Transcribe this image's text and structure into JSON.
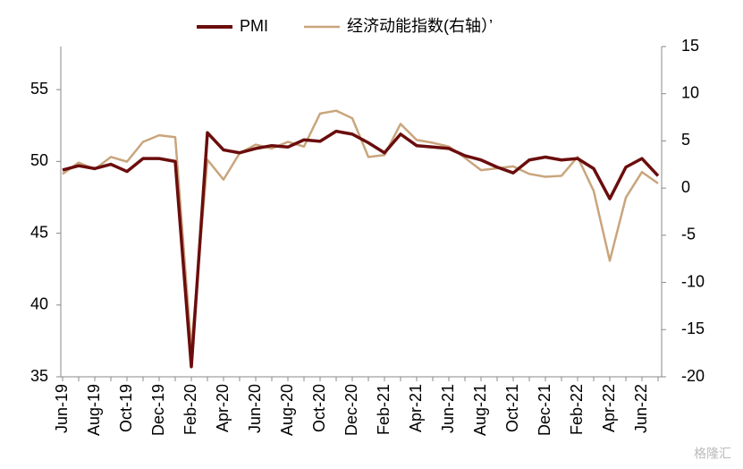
{
  "chart_data": {
    "type": "line",
    "categories": [
      "Jun-19",
      null,
      "Aug-19",
      null,
      "Oct-19",
      null,
      "Dec-19",
      null,
      "Feb-20",
      null,
      "Apr-20",
      null,
      "Jun-20",
      null,
      "Aug-20",
      null,
      "Oct-20",
      null,
      "Dec-20",
      null,
      "Feb-21",
      null,
      "Apr-21",
      null,
      "Jun-21",
      null,
      "Aug-21",
      null,
      "Oct-21",
      null,
      "Dec-21",
      null,
      "Feb-22",
      null,
      "Apr-22",
      null,
      "Jun-22",
      null
    ],
    "series": [
      {
        "name": "PMI",
        "color": "#6b0d0d",
        "values": [
          49.4,
          49.7,
          49.5,
          49.8,
          49.3,
          50.2,
          50.2,
          50.0,
          35.7,
          52.0,
          50.8,
          50.6,
          50.9,
          51.1,
          51.0,
          51.5,
          51.4,
          52.1,
          51.9,
          51.3,
          50.6,
          51.9,
          51.1,
          51.0,
          50.9,
          50.4,
          50.1,
          49.6,
          49.2,
          50.1,
          50.3,
          50.1,
          50.2,
          49.5,
          47.4,
          49.6,
          50.2,
          49.0
        ]
      },
      {
        "name": "经济动能指数(右轴）’",
        "color": "#c9a57c",
        "axis": "y2",
        "values": [
          1.5,
          2.7,
          2.0,
          3.3,
          2.8,
          4.9,
          5.6,
          5.4,
          -17,
          3.0,
          0.9,
          3.7,
          4.6,
          4.2,
          4.9,
          4.4,
          7.9,
          8.2,
          7.4,
          3.3,
          3.5,
          6.8,
          5.1,
          4.8,
          4.4,
          3.2,
          1.9,
          2.1,
          2.3,
          1.5,
          1.2,
          1.3,
          3.3,
          -0.3,
          -7.7,
          -1.0,
          1.7,
          0.5
        ]
      }
    ],
    "ylim": [
      35,
      58
    ],
    "yticks": [
      35,
      40,
      45,
      50,
      55
    ],
    "y2lim": [
      -20,
      15
    ],
    "y2ticks": [
      -20,
      -15,
      -10,
      -5,
      0,
      5,
      10,
      15
    ],
    "legend": "top",
    "watermark": "格隆汇"
  }
}
